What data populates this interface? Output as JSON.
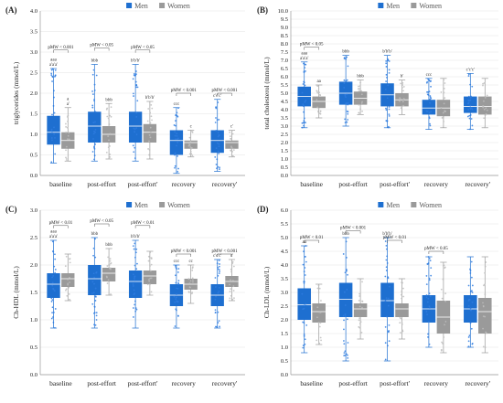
{
  "legend": {
    "men": "Men",
    "women": "Women"
  },
  "colors": {
    "men": "#1e6fd0",
    "women": "#9a9a9a",
    "men_dot": "#2f7de1",
    "women_dot": "#bdbdbd"
  },
  "chart_data": [
    {
      "id": "A",
      "label": "(A)",
      "type": "box",
      "ylabel": "triglycerides (mmol/L)",
      "ylim": [
        0,
        4
      ],
      "yticks": [
        0,
        0.5,
        1,
        1.5,
        2,
        2.5,
        3,
        3.5,
        4
      ],
      "categories": [
        "baseline",
        "post-effort",
        "post-effort'",
        "recovery",
        "recovery'"
      ],
      "series": [
        {
          "name": "Men",
          "boxes": [
            {
              "wlo": 0.3,
              "q1": 0.75,
              "med": 1.05,
              "q3": 1.45,
              "whi": 2.6,
              "ann": "aaa\na'a'a'"
            },
            {
              "wlo": 0.35,
              "q1": 0.8,
              "med": 1.2,
              "q3": 1.55,
              "whi": 2.7,
              "ann": "bbb"
            },
            {
              "wlo": 0.35,
              "q1": 0.8,
              "med": 1.2,
              "q3": 1.55,
              "whi": 2.7,
              "ann": "b'b'b'"
            },
            {
              "wlo": 0.05,
              "q1": 0.5,
              "med": 0.85,
              "q3": 1.1,
              "whi": 1.65,
              "ann": "ccc"
            },
            {
              "wlo": 0.1,
              "q1": 0.55,
              "med": 0.85,
              "q3": 1.1,
              "whi": 1.85,
              "ann": "c'c'c'"
            }
          ]
        },
        {
          "name": "Women",
          "boxes": [
            {
              "wlo": 0.35,
              "q1": 0.65,
              "med": 0.85,
              "q3": 1.05,
              "whi": 1.65,
              "ann": "a\na'"
            },
            {
              "wlo": 0.4,
              "q1": 0.8,
              "med": 1.0,
              "q3": 1.2,
              "whi": 1.75,
              "ann": "bbb"
            },
            {
              "wlo": 0.4,
              "q1": 0.8,
              "med": 1.05,
              "q3": 1.25,
              "whi": 1.8,
              "ann": "b'b'b'"
            },
            {
              "wlo": 0.45,
              "q1": 0.65,
              "med": 0.8,
              "q3": 0.85,
              "whi": 1.1,
              "ann": "c"
            },
            {
              "wlo": 0.45,
              "q1": 0.65,
              "med": 0.8,
              "q3": 0.85,
              "whi": 1.1,
              "ann": "c'"
            }
          ]
        }
      ],
      "pmw": [
        {
          "cat": 0,
          "label": "pMW < 0.001",
          "y": 3.05
        },
        {
          "cat": 1,
          "label": "pMW < 0.05",
          "y": 3.1
        },
        {
          "cat": 2,
          "label": "pMW < 0.05",
          "y": 3.05
        },
        {
          "cat": 3,
          "label": "pMW < 0.001",
          "y": 2.0
        },
        {
          "cat": 4,
          "label": "pMW < 0.001",
          "y": 2.0
        }
      ]
    },
    {
      "id": "B",
      "label": "(B)",
      "type": "box",
      "ylabel": "total cholesterol (mmol/L)",
      "ylim": [
        0,
        10
      ],
      "yticks": [
        0,
        0.5,
        1,
        1.5,
        2,
        2.5,
        3,
        3.5,
        4,
        4.5,
        5,
        5.5,
        6,
        6.5,
        7,
        7.5,
        8,
        8.5,
        9,
        9.5,
        10
      ],
      "categories": [
        "baseline",
        "post-effort",
        "post-effort'",
        "recovery",
        "recovery'"
      ],
      "series": [
        {
          "name": "Men",
          "boxes": [
            {
              "wlo": 2.9,
              "q1": 4.2,
              "med": 4.8,
              "q3": 5.4,
              "whi": 6.9,
              "ann": "aaa\na'a'a'"
            },
            {
              "wlo": 3.0,
              "q1": 4.3,
              "med": 5.0,
              "q3": 5.7,
              "whi": 7.3,
              "ann": "bbb"
            },
            {
              "wlo": 2.9,
              "q1": 4.2,
              "med": 4.9,
              "q3": 5.6,
              "whi": 7.3,
              "ann": "b'b'b'"
            },
            {
              "wlo": 2.8,
              "q1": 3.7,
              "med": 4.1,
              "q3": 4.6,
              "whi": 5.9,
              "ann": "ccc"
            },
            {
              "wlo": 2.8,
              "q1": 3.8,
              "med": 4.2,
              "q3": 4.8,
              "whi": 6.2,
              "ann": "c'c'c'"
            }
          ]
        },
        {
          "name": "Women",
          "boxes": [
            {
              "wlo": 3.5,
              "q1": 4.1,
              "med": 4.5,
              "q3": 4.8,
              "whi": 5.5,
              "ann": "aa"
            },
            {
              "wlo": 3.7,
              "q1": 4.3,
              "med": 4.7,
              "q3": 5.1,
              "whi": 5.8,
              "ann": "bbb"
            },
            {
              "wlo": 3.7,
              "q1": 4.2,
              "med": 4.6,
              "q3": 5.0,
              "whi": 5.8,
              "ann": "b'"
            },
            {
              "wlo": 2.9,
              "q1": 3.6,
              "med": 4.1,
              "q3": 4.6,
              "whi": 5.9,
              "ann": ""
            },
            {
              "wlo": 2.9,
              "q1": 3.7,
              "med": 4.2,
              "q3": 4.8,
              "whi": 5.9,
              "ann": ""
            }
          ]
        }
      ],
      "pmw": [
        {
          "cat": 0,
          "label": "pMW < 0.05",
          "y": 7.8
        }
      ]
    },
    {
      "id": "C",
      "label": "(C)",
      "type": "box",
      "ylabel": "Ch-HDL (mmol/L)",
      "ylim": [
        0,
        3
      ],
      "yticks": [
        0,
        0.5,
        1,
        1.5,
        2,
        2.5,
        3
      ],
      "categories": [
        "baseline",
        "post-effort",
        "post-effort'",
        "recovery",
        "recovery'"
      ],
      "series": [
        {
          "name": "Men",
          "boxes": [
            {
              "wlo": 0.85,
              "q1": 1.4,
              "med": 1.65,
              "q3": 1.85,
              "whi": 2.45,
              "ann": "aaa\na'a'a'"
            },
            {
              "wlo": 0.85,
              "q1": 1.45,
              "med": 1.75,
              "q3": 2.0,
              "whi": 2.5,
              "ann": "bbb"
            },
            {
              "wlo": 0.85,
              "q1": 1.4,
              "med": 1.7,
              "q3": 1.9,
              "whi": 2.45,
              "ann": "b'b'b'"
            },
            {
              "wlo": 0.85,
              "q1": 1.25,
              "med": 1.45,
              "q3": 1.65,
              "whi": 2.0,
              "ann": "ccc"
            },
            {
              "wlo": 0.85,
              "q1": 1.25,
              "med": 1.45,
              "q3": 1.65,
              "whi": 2.1,
              "ann": "c'c'c'"
            }
          ]
        },
        {
          "name": "Women",
          "boxes": [
            {
              "wlo": 1.35,
              "q1": 1.6,
              "med": 1.75,
              "q3": 1.85,
              "whi": 2.2,
              "ann": ""
            },
            {
              "wlo": 1.45,
              "q1": 1.7,
              "med": 1.85,
              "q3": 1.95,
              "whi": 2.3,
              "ann": "bbb"
            },
            {
              "wlo": 1.45,
              "q1": 1.65,
              "med": 1.8,
              "q3": 1.9,
              "whi": 2.25,
              "ann": ""
            },
            {
              "wlo": 1.3,
              "q1": 1.55,
              "med": 1.65,
              "q3": 1.75,
              "whi": 2.0,
              "ann": "cc"
            },
            {
              "wlo": 1.35,
              "q1": 1.6,
              "med": 1.7,
              "q3": 1.8,
              "whi": 2.1,
              "ann": "c'"
            }
          ]
        }
      ],
      "pmw": [
        {
          "cat": 0,
          "label": "pMW < 0.01",
          "y": 2.72
        },
        {
          "cat": 1,
          "label": "pMW < 0.05",
          "y": 2.75
        },
        {
          "cat": 2,
          "label": "pMW < 0.01",
          "y": 2.72
        },
        {
          "cat": 3,
          "label": "pMW < 0.001",
          "y": 2.2
        },
        {
          "cat": 4,
          "label": "pMW < 0.001",
          "y": 2.2
        }
      ]
    },
    {
      "id": "D",
      "label": "(D)",
      "type": "box",
      "ylabel": "Ch-LDL (mmol/L)",
      "ylim": [
        0,
        6
      ],
      "yticks": [
        0,
        0.5,
        1,
        1.5,
        2,
        2.5,
        3,
        3.5,
        4,
        4.5,
        5,
        5.5,
        6
      ],
      "categories": [
        "baseline",
        "post-effort",
        "post-effort'",
        "recovery",
        "recovery'"
      ],
      "series": [
        {
          "name": "Men",
          "boxes": [
            {
              "wlo": 0.8,
              "q1": 2.0,
              "med": 2.55,
              "q3": 3.15,
              "whi": 4.7,
              "ann": "aa"
            },
            {
              "wlo": 0.5,
              "q1": 2.1,
              "med": 2.75,
              "q3": 3.35,
              "whi": 5.0,
              "ann": "bbb"
            },
            {
              "wlo": 0.5,
              "q1": 2.1,
              "med": 2.7,
              "q3": 3.35,
              "whi": 5.0,
              "ann": "b'b'b'"
            },
            {
              "wlo": 1.0,
              "q1": 1.9,
              "med": 2.4,
              "q3": 2.9,
              "whi": 4.3,
              "ann": ""
            },
            {
              "wlo": 1.0,
              "q1": 1.9,
              "med": 2.4,
              "q3": 2.9,
              "whi": 4.3,
              "ann": ""
            }
          ]
        },
        {
          "name": "Women",
          "boxes": [
            {
              "wlo": 1.1,
              "q1": 1.9,
              "med": 2.3,
              "q3": 2.6,
              "whi": 3.3,
              "ann": ""
            },
            {
              "wlo": 1.3,
              "q1": 2.1,
              "med": 2.4,
              "q3": 2.6,
              "whi": 3.5,
              "ann": ""
            },
            {
              "wlo": 1.3,
              "q1": 2.1,
              "med": 2.4,
              "q3": 2.6,
              "whi": 3.5,
              "ann": ""
            },
            {
              "wlo": 0.8,
              "q1": 1.5,
              "med": 2.1,
              "q3": 2.7,
              "whi": 4.1,
              "ann": ""
            },
            {
              "wlo": 0.8,
              "q1": 1.5,
              "med": 2.3,
              "q3": 2.8,
              "whi": 4.3,
              "ann": ""
            }
          ]
        }
      ],
      "pmw": [
        {
          "cat": 0,
          "label": "pMW < 0.01",
          "y": 4.9
        },
        {
          "cat": 1,
          "label": "pMW < 0.001",
          "y": 5.25
        },
        {
          "cat": 2,
          "label": "pMW < 0.01",
          "y": 4.9
        },
        {
          "cat": 3,
          "label": "pMW < 0.05",
          "y": 4.5
        }
      ]
    }
  ]
}
